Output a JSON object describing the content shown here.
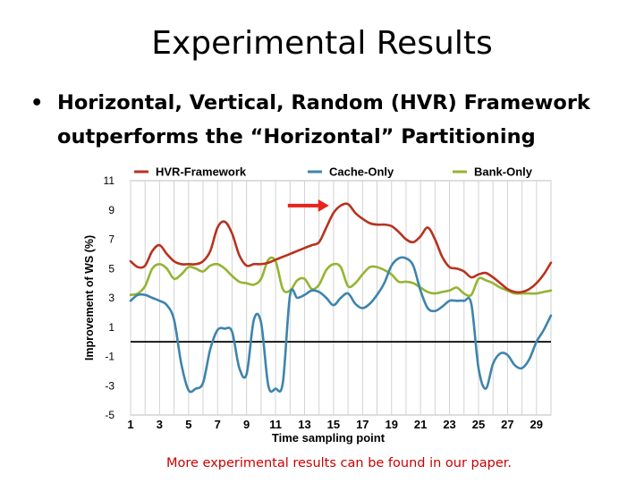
{
  "slide": {
    "title": "Experimental Results",
    "bullet": "Horizontal, Vertical, Random (HVR) Framework outperforms the “Horizontal” Partitioning",
    "footnote": "More experimental results can be found in our paper."
  },
  "chart_data": {
    "type": "line",
    "xlabel": "Time sampling point",
    "ylabel": "Improvement of WS (%)",
    "xlim": [
      1,
      30
    ],
    "ylim": [
      -5,
      11
    ],
    "xticks": [
      1,
      3,
      5,
      7,
      9,
      11,
      13,
      15,
      17,
      19,
      21,
      23,
      25,
      27,
      29
    ],
    "yticks": [
      11,
      9,
      7,
      5,
      3,
      1,
      -1,
      -3,
      -5
    ],
    "grid": "vertical",
    "legend_position": "top",
    "reference_line": 0,
    "arrow_annotation": {
      "x": 15.3,
      "y": 9.3,
      "color": "#e8231a"
    },
    "series": [
      {
        "name": "HVR-Framework",
        "color": "#b8321f",
        "x": [
          1,
          1.5,
          2,
          2.5,
          3,
          3.5,
          4,
          4.5,
          5,
          5.5,
          6,
          6.5,
          7,
          7.5,
          8,
          8.5,
          9,
          9.5,
          10,
          10.5,
          11,
          11.5,
          12,
          12.5,
          13,
          13.5,
          14,
          14.5,
          15,
          15.5,
          16,
          16.5,
          17,
          17.5,
          18,
          18.5,
          19,
          19.5,
          20,
          20.5,
          21,
          21.5,
          22,
          22.5,
          23,
          23.5,
          24,
          24.5,
          25,
          25.5,
          26,
          26.5,
          27,
          27.5,
          28,
          28.5,
          29,
          29.5,
          30
        ],
        "values": [
          5.5,
          5.1,
          5.2,
          6.2,
          6.6,
          6.0,
          5.5,
          5.3,
          5.3,
          5.3,
          5.5,
          6.2,
          7.8,
          8.2,
          7.4,
          5.9,
          5.2,
          5.3,
          5.3,
          5.4,
          5.6,
          5.8,
          6.0,
          6.2,
          6.4,
          6.6,
          6.8,
          7.8,
          8.8,
          9.3,
          9.4,
          8.8,
          8.4,
          8.1,
          8.0,
          8.0,
          7.9,
          7.5,
          7.0,
          6.8,
          7.2,
          7.8,
          7.0,
          5.8,
          5.1,
          5.0,
          4.8,
          4.4,
          4.6,
          4.7,
          4.4,
          4.0,
          3.6,
          3.4,
          3.4,
          3.6,
          4.0,
          4.6,
          5.4
        ]
      },
      {
        "name": "Cache-Only",
        "color": "#3d84ad",
        "x": [
          1,
          1.5,
          2,
          2.5,
          3,
          3.5,
          4,
          4.5,
          5,
          5.5,
          6,
          6.5,
          7,
          7.5,
          8,
          8.5,
          9,
          9.5,
          10,
          10.5,
          11,
          11.5,
          12,
          12.5,
          13,
          13.5,
          14,
          14.5,
          15,
          15.5,
          16,
          16.5,
          17,
          17.5,
          18,
          18.5,
          19,
          19.5,
          20,
          20.5,
          21,
          21.5,
          22,
          22.5,
          23,
          23.5,
          24,
          24.5,
          25,
          25.5,
          26,
          26.5,
          27,
          27.5,
          28,
          28.5,
          29,
          29.5,
          30
        ],
        "values": [
          2.8,
          3.2,
          3.2,
          3.0,
          2.8,
          2.5,
          1.5,
          -1.5,
          -3.3,
          -3.2,
          -2.8,
          -0.5,
          0.8,
          0.9,
          0.7,
          -1.8,
          -2.2,
          1.5,
          1.3,
          -3.0,
          -3.2,
          -2.8,
          3.2,
          3.0,
          3.2,
          3.5,
          3.4,
          3.0,
          2.5,
          3.0,
          3.3,
          2.6,
          2.3,
          2.6,
          3.2,
          4.0,
          5.2,
          5.7,
          5.7,
          5.2,
          3.5,
          2.3,
          2.1,
          2.4,
          2.8,
          2.8,
          2.8,
          2.6,
          -1.8,
          -3.2,
          -1.5,
          -0.8,
          -0.9,
          -1.6,
          -1.8,
          -1.2,
          0.0,
          0.8,
          1.8
        ]
      },
      {
        "name": "Bank-Only",
        "color": "#94b433",
        "x": [
          1,
          1.5,
          2,
          2.5,
          3,
          3.5,
          4,
          4.5,
          5,
          5.5,
          6,
          6.5,
          7,
          7.5,
          8,
          8.5,
          9,
          9.5,
          10,
          10.5,
          11,
          11.5,
          12,
          12.5,
          13,
          13.5,
          14,
          14.5,
          15,
          15.5,
          16,
          16.5,
          17,
          17.5,
          18,
          18.5,
          19,
          19.5,
          20,
          20.5,
          21,
          21.5,
          22,
          22.5,
          23,
          23.5,
          24,
          24.5,
          25,
          25.5,
          26,
          26.5,
          27,
          27.5,
          28,
          28.5,
          29,
          29.5,
          30
        ],
        "values": [
          3.2,
          3.3,
          3.8,
          5.0,
          5.3,
          5.0,
          4.3,
          4.6,
          5.1,
          5.0,
          4.8,
          5.2,
          5.3,
          5.0,
          4.5,
          4.1,
          4.0,
          3.9,
          4.3,
          5.6,
          5.5,
          3.6,
          3.5,
          4.2,
          4.3,
          3.6,
          3.9,
          4.9,
          5.3,
          5.1,
          3.8,
          4.0,
          4.6,
          5.1,
          5.1,
          4.9,
          4.6,
          4.1,
          4.1,
          4.0,
          3.7,
          3.4,
          3.3,
          3.4,
          3.5,
          3.7,
          3.3,
          3.2,
          4.3,
          4.2,
          4.0,
          3.7,
          3.5,
          3.3,
          3.3,
          3.3,
          3.3,
          3.4,
          3.5
        ]
      }
    ]
  }
}
